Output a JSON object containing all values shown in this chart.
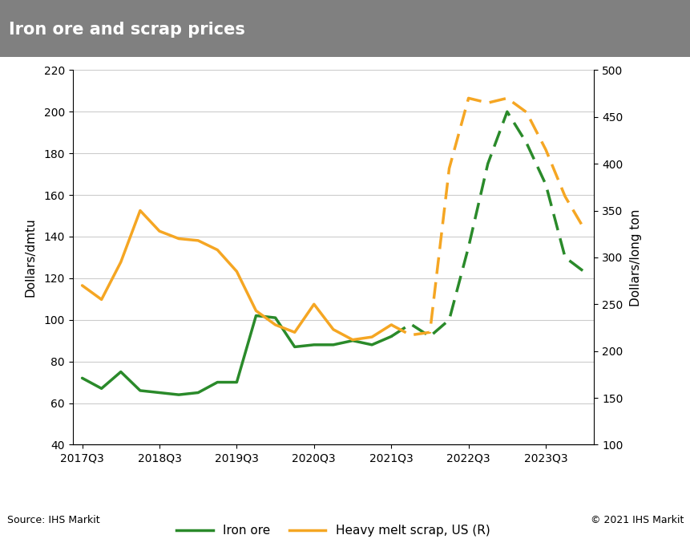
{
  "title": "Iron ore and scrap prices",
  "title_bg_color": "#808080",
  "title_text_color": "#ffffff",
  "ylabel_left": "Dollars/dmtu",
  "ylabel_right": "Dollars/long ton",
  "source_left": "Source: IHS Markit",
  "source_right": "© 2021 IHS Markit",
  "ylim_left": [
    40,
    220
  ],
  "ylim_right": [
    100,
    500
  ],
  "yticks_left": [
    40,
    60,
    80,
    100,
    120,
    140,
    160,
    180,
    200,
    220
  ],
  "yticks_right": [
    100,
    150,
    200,
    250,
    300,
    350,
    400,
    450,
    500
  ],
  "background_color": "#ffffff",
  "plot_bg_color": "#ffffff",
  "grid_color": "#cccccc",
  "iron_ore_color": "#2a8a2a",
  "scrap_color": "#f5a623",
  "iron_ore_x": [
    0,
    1,
    2,
    3,
    4,
    5,
    6,
    7,
    8,
    9,
    10,
    11,
    12,
    13,
    14,
    15,
    16,
    17,
    18,
    19,
    20,
    21,
    22,
    23,
    24,
    25,
    26
  ],
  "iron_ore_y": [
    72,
    67,
    75,
    66,
    65,
    64,
    65,
    70,
    70,
    102,
    101,
    87,
    88,
    88,
    90,
    88,
    92,
    98,
    92,
    100,
    135,
    175,
    200,
    185,
    165,
    130,
    123
  ],
  "iron_ore_solid_end": 16,
  "scrap_x": [
    0,
    1,
    2,
    3,
    4,
    5,
    6,
    7,
    8,
    9,
    10,
    11,
    12,
    13,
    14,
    15,
    16,
    17,
    18,
    19,
    20,
    21,
    22,
    23,
    24,
    25,
    26
  ],
  "scrap_y": [
    270,
    255,
    295,
    350,
    328,
    320,
    318,
    308,
    285,
    243,
    228,
    220,
    250,
    223,
    212,
    215,
    228,
    217,
    220,
    395,
    470,
    465,
    470,
    455,
    415,
    365,
    330
  ],
  "scrap_solid_end": 16,
  "xtick_positions": [
    0,
    4,
    8,
    12,
    16,
    20,
    24
  ],
  "xtick_labels": [
    "2017Q3",
    "2018Q3",
    "2019Q3",
    "2020Q3",
    "2021Q3",
    "2022Q3",
    "2023Q3"
  ],
  "xlim": [
    -0.5,
    26.5
  ],
  "legend_iron_ore": "Iron ore",
  "legend_scrap": "Heavy melt scrap, US (R)"
}
